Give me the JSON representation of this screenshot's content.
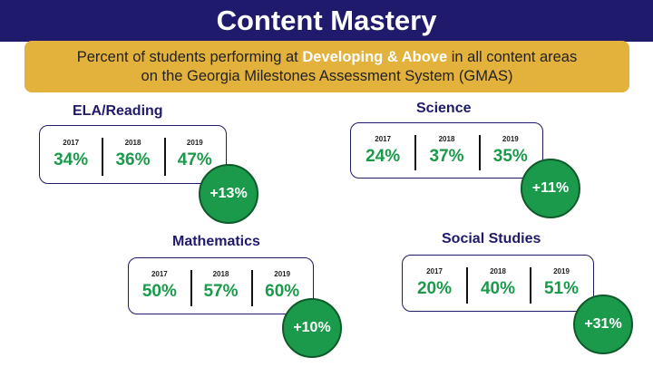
{
  "title": "Content Mastery",
  "banner": {
    "line1_pre": "Percent of students performing at ",
    "line1_highlight": "Developing & Above",
    "line1_post": " in all content areas",
    "line2": "on the Georgia Milestones Assessment System (GMAS)"
  },
  "colors": {
    "title_bar": "#1f1a6b",
    "banner": "#e3b23c",
    "value_green": "#1a9a4a"
  },
  "subjects": [
    {
      "name": "ELA/Reading",
      "years": [
        "2017",
        "2018",
        "2019"
      ],
      "values": [
        "34%",
        "36%",
        "47%"
      ],
      "change": "+13%"
    },
    {
      "name": "Science",
      "years": [
        "2017",
        "2018",
        "2019"
      ],
      "values": [
        "24%",
        "37%",
        "35%"
      ],
      "change": "+11%"
    },
    {
      "name": "Mathematics",
      "years": [
        "2017",
        "2018",
        "2019"
      ],
      "values": [
        "50%",
        "57%",
        "60%"
      ],
      "change": "+10%"
    },
    {
      "name": "Social Studies",
      "years": [
        "2017",
        "2018",
        "2019"
      ],
      "values": [
        "20%",
        "40%",
        "51%"
      ],
      "change": "+31%"
    }
  ]
}
